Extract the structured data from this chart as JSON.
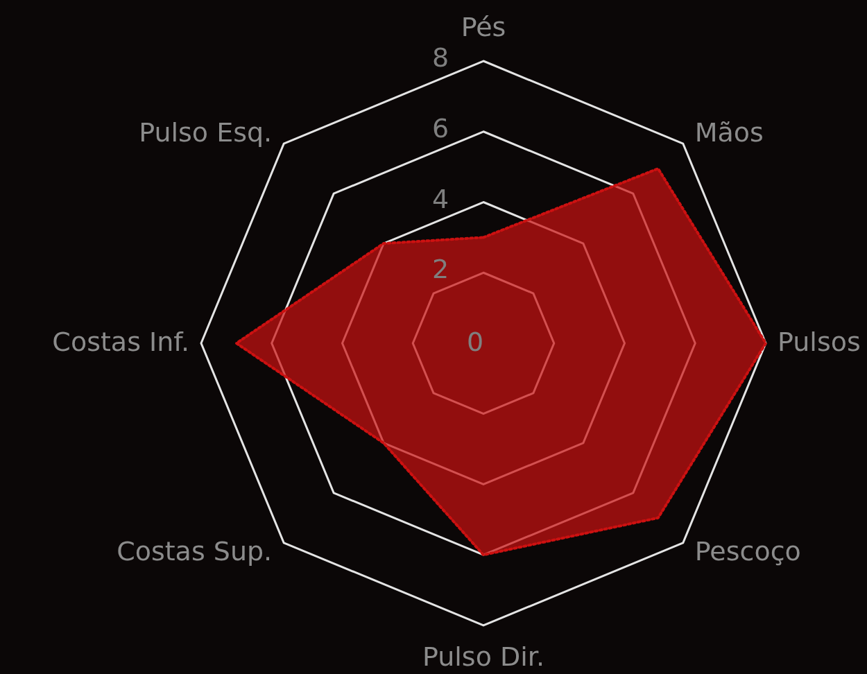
{
  "chart_data": {
    "type": "radar",
    "categories": [
      "Pés",
      "Mãos",
      "Pulsos",
      "Pescoço",
      "Pulso Dir.",
      "Costas Sup.",
      "Costas Inf.",
      "Pulso Esq."
    ],
    "series": [
      {
        "color": "#cc1111",
        "values": [
          3,
          7,
          8,
          7,
          6,
          4,
          7,
          4
        ]
      }
    ],
    "ylim": [
      0,
      8
    ],
    "yticks": [
      0,
      2,
      4,
      6,
      8
    ],
    "grid": true,
    "line_style": "dotted"
  }
}
